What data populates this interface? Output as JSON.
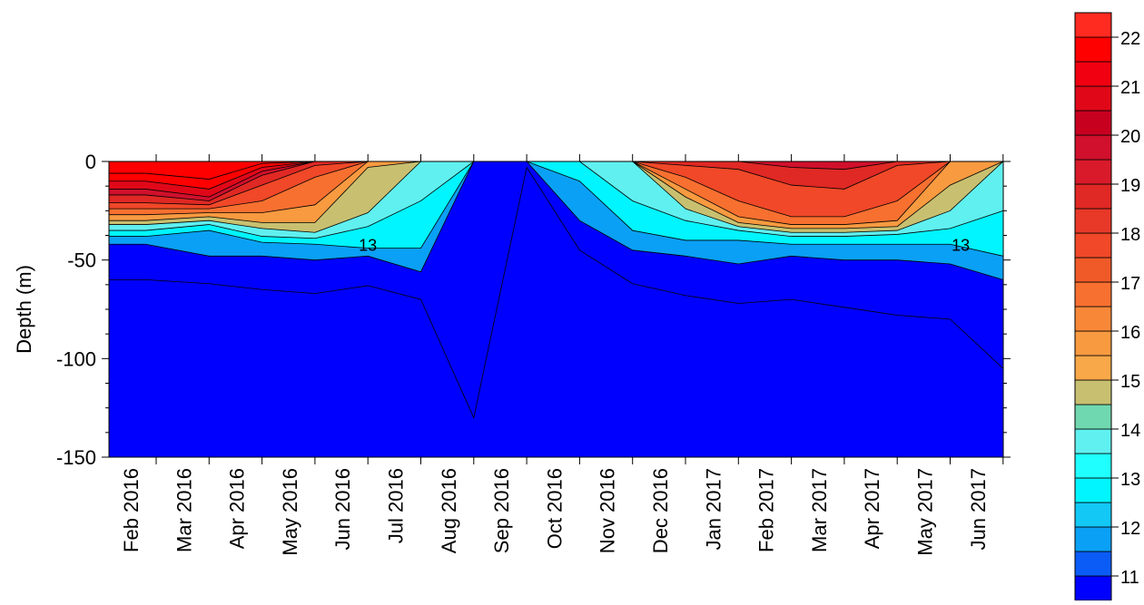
{
  "chart_data": {
    "type": "heatmap",
    "ylabel": "Depth (m)",
    "ylim": [
      -150,
      0
    ],
    "y_ticks": [
      0,
      -50,
      -100,
      -150
    ],
    "x_tick_labels": [
      "Feb 2016",
      "Mar 2016",
      "Apr 2016",
      "May 2016",
      "Jun 2016",
      "Jul 2016",
      "Aug 2016",
      "Sep 2016",
      "Oct 2016",
      "Nov 2016",
      "Dec 2016",
      "Jan 2017",
      "Feb 2017",
      "Mar 2017",
      "Apr 2017",
      "May 2017",
      "Jun 2017"
    ],
    "contour_labels": [
      {
        "text": "13",
        "month_index": 4.0,
        "depth": -42
      },
      {
        "text": "13",
        "month_index": 15.2,
        "depth": -42
      }
    ],
    "colorbar": {
      "levels": [
        11,
        11.5,
        12,
        12.5,
        13,
        13.5,
        14,
        14.5,
        15,
        15.5,
        16,
        16.5,
        17,
        17.5,
        18,
        18.5,
        19,
        19.5,
        20,
        20.5,
        21,
        21.5,
        22,
        22.5,
        23
      ],
      "tick_labels": [
        "11",
        "12",
        "13",
        "14",
        "15",
        "16",
        "17",
        "18",
        "19",
        "20",
        "21",
        "22"
      ],
      "colors": [
        "#0000ff",
        "#0b5cf7",
        "#0aa0f5",
        "#13c8f5",
        "#00f5ff",
        "#20ffff",
        "#60f0f0",
        "#70d8b0",
        "#c8c070",
        "#f8a848",
        "#f89a40",
        "#f88838",
        "#f87030",
        "#f05a28",
        "#f04828",
        "#e83828",
        "#e02824",
        "#d81a2a",
        "#d0102c",
        "#c80020",
        "#e00818",
        "#f00010",
        "#ff0000",
        "#ff2a20"
      ],
      "position": "right"
    },
    "profiles": [
      {
        "month_index": -0.2,
        "isotherms": {
          "23": -6,
          "22": -10,
          "21": -14,
          "20": -17,
          "19": -21,
          "18": -24,
          "17": -27,
          "16": -30,
          "15": -32,
          "14": -35,
          "13": -38,
          "12": -42,
          "11": -60
        }
      },
      {
        "month_index": 1.0,
        "isotherms": {
          "23": -9,
          "22": -14,
          "21": -18,
          "20": -20,
          "19": -22,
          "18": -24,
          "17": -26,
          "16": -28,
          "15": -30,
          "14": -32,
          "13": -35,
          "12": -48,
          "11": -62
        }
      },
      {
        "month_index": 2.0,
        "isotherms": {
          "23": -1,
          "22": -3,
          "21": -5,
          "20": -7,
          "19": -12,
          "18": -20,
          "17": -26,
          "16": -31,
          "15": -34,
          "14": -38,
          "13": -41,
          "12": -48,
          "11": -65
        }
      },
      {
        "month_index": 3.0,
        "isotherms": {
          "23": 0,
          "22": 0,
          "21": 0,
          "20": 0,
          "19": -2,
          "18": -8,
          "17": -22,
          "16": -31,
          "15": -36,
          "14": -39,
          "13": -42,
          "12": -50,
          "11": -67
        }
      },
      {
        "month_index": 4.0,
        "isotherms": {
          "23": 0,
          "22": 0,
          "21": 0,
          "20": 0,
          "19": 0,
          "18": 0,
          "17": 0,
          "16": -3,
          "15": -26,
          "14": -33,
          "13": -44,
          "12": -48,
          "11": -63
        }
      },
      {
        "month_index": 5.0,
        "isotherms": {
          "23": 0,
          "22": 0,
          "21": 0,
          "20": 0,
          "19": 0,
          "18": 0,
          "17": 0,
          "16": 0,
          "15": 0,
          "14": -20,
          "13": -44,
          "12": -56,
          "11": -70
        }
      },
      {
        "month_index": 6.0,
        "isotherms": {
          "23": 0,
          "22": 0,
          "21": 0,
          "20": 0,
          "19": 0,
          "18": 0,
          "17": 0,
          "16": 0,
          "15": 0,
          "14": 0,
          "13": 0,
          "12": 0,
          "11": -130
        }
      },
      {
        "month_index": 7.0,
        "isotherms": {
          "23": 0,
          "22": 0,
          "21": 0,
          "20": 0,
          "19": 0,
          "18": 0,
          "17": 0,
          "16": 0,
          "15": 0,
          "14": 0,
          "13": 0,
          "12": 0,
          "11": -3
        }
      },
      {
        "month_index": 8.0,
        "isotherms": {
          "23": 0,
          "22": 0,
          "21": 0,
          "20": 0,
          "19": 0,
          "18": 0,
          "17": 0,
          "16": 0,
          "15": 0,
          "14": 0,
          "13": -10,
          "12": -30,
          "11": -45
        }
      },
      {
        "month_index": 9.0,
        "isotherms": {
          "23": 0,
          "22": 0,
          "21": 0,
          "20": 0,
          "19": 0,
          "18": 0,
          "17": 0,
          "16": 0,
          "15": 0,
          "14": -20,
          "13": -35,
          "12": -45,
          "11": -62
        }
      },
      {
        "month_index": 10.0,
        "isotherms": {
          "23": 0,
          "22": 0,
          "21": 0,
          "20": 0,
          "19": -2,
          "18": -8,
          "17": -14,
          "16": -18,
          "15": -24,
          "14": -30,
          "13": -40,
          "12": -48,
          "11": -68
        }
      },
      {
        "month_index": 11.0,
        "isotherms": {
          "23": 0,
          "22": 0,
          "21": 0,
          "20": 0,
          "19": -4,
          "18": -20,
          "17": -28,
          "16": -31,
          "15": -33,
          "14": -35,
          "13": -40,
          "12": -52,
          "11": -72
        }
      },
      {
        "month_index": 12.0,
        "isotherms": {
          "23": 0,
          "22": 0,
          "21": 0,
          "20": -3,
          "19": -12,
          "18": -28,
          "17": -32,
          "16": -34,
          "15": -36,
          "14": -38,
          "13": -42,
          "12": -48,
          "11": -70
        }
      },
      {
        "month_index": 13.0,
        "isotherms": {
          "23": 0,
          "22": 0,
          "21": 0,
          "20": -4,
          "19": -14,
          "18": -28,
          "17": -32,
          "16": -34,
          "15": -36,
          "14": -38,
          "13": -42,
          "12": -50,
          "11": -74
        }
      },
      {
        "month_index": 14.0,
        "isotherms": {
          "23": 0,
          "22": 0,
          "21": 0,
          "20": 0,
          "19": -2,
          "18": -20,
          "17": -30,
          "16": -33,
          "15": -35,
          "14": -37,
          "13": -42,
          "12": -50,
          "11": -78
        }
      },
      {
        "month_index": 15.0,
        "isotherms": {
          "23": 0,
          "22": 0,
          "21": 0,
          "20": 0,
          "19": 0,
          "18": 0,
          "17": 0,
          "16": -12,
          "15": -25,
          "14": -34,
          "13": -42,
          "12": -52,
          "11": -80
        }
      },
      {
        "month_index": 16.0,
        "isotherms": {
          "23": 0,
          "22": 0,
          "21": 0,
          "20": 0,
          "19": 0,
          "18": 0,
          "17": 0,
          "16": 0,
          "15": 0,
          "14": -25,
          "13": -48,
          "12": -60,
          "11": -105
        }
      },
      {
        "month_index": 16.9,
        "isotherms": {
          "23": 0,
          "22": 0,
          "21": 0,
          "20": 0,
          "19": 0,
          "18": 0,
          "17": 0,
          "16": 0,
          "15": 0,
          "14": 0,
          "13": -55,
          "12": -65,
          "11": -132
        }
      }
    ]
  }
}
